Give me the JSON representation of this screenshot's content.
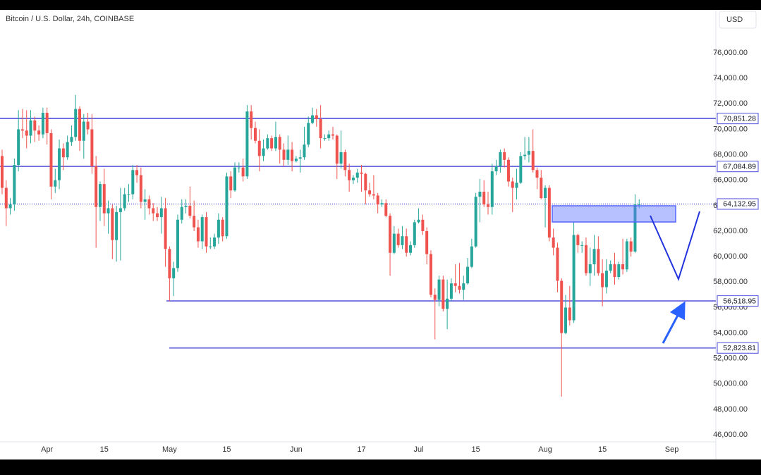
{
  "chart_data": {
    "type": "candlestick",
    "title": "Bitcoin / U.S. Dollar, 24h, COINBASE",
    "currency": "USD",
    "up_color": "#26a69a",
    "down_color": "#ef5350",
    "level_color": "#6a6ae0",
    "ylim": [
      45450,
      79380
    ],
    "yticks": [
      {
        "value": 46000,
        "label": "46,000.00"
      },
      {
        "value": 48000,
        "label": "48,000.00"
      },
      {
        "value": 50000,
        "label": "50,000.00"
      },
      {
        "value": 52000,
        "label": "52,000.00"
      },
      {
        "value": 54000,
        "label": "54,000.00"
      },
      {
        "value": 56000,
        "label": "56,000.00"
      },
      {
        "value": 58000,
        "label": "58,000.00"
      },
      {
        "value": 60000,
        "label": "60,000.00"
      },
      {
        "value": 62000,
        "label": "62,000.00"
      },
      {
        "value": 64000,
        "label": "64,000.00"
      },
      {
        "value": 66000,
        "label": "66,000.00"
      },
      {
        "value": 68000,
        "label": "68,000.00"
      },
      {
        "value": 70000,
        "label": "70,000.00"
      },
      {
        "value": 72000,
        "label": "72,000.00"
      },
      {
        "value": 74000,
        "label": "74,000.00"
      },
      {
        "value": 76000,
        "label": "76,000.00"
      }
    ],
    "levels": [
      {
        "value": 70851.28,
        "label": "70,851.28"
      },
      {
        "value": 67084.89,
        "label": "67,084.89"
      },
      {
        "value": 64132.95,
        "label": "64,132.95"
      },
      {
        "value": 56518.95,
        "label": "56,518.95"
      },
      {
        "value": 52823.81,
        "label": "52,823.81"
      }
    ],
    "categories": [
      null,
      null,
      null,
      null,
      null,
      null,
      null,
      null,
      null,
      null,
      null,
      "Apr",
      null,
      null,
      null,
      null,
      null,
      null,
      null,
      null,
      null,
      null,
      null,
      null,
      null,
      "15",
      null,
      null,
      null,
      null,
      null,
      null,
      null,
      null,
      null,
      null,
      null,
      null,
      null,
      null,
      null,
      "May",
      null,
      null,
      null,
      null,
      null,
      null,
      null,
      null,
      null,
      null,
      null,
      null,
      null,
      "15",
      null,
      null,
      null,
      null,
      null,
      null,
      null,
      null,
      null,
      null,
      null,
      null,
      null,
      null,
      null,
      null,
      "Jun",
      null,
      null,
      null,
      null,
      null,
      null,
      null,
      null,
      null,
      null,
      null,
      null,
      null,
      null,
      null,
      "17",
      null,
      null,
      null,
      null,
      null,
      null,
      null,
      null,
      null,
      null,
      null,
      null,
      null,
      "Jul",
      null,
      null,
      null,
      null,
      null,
      null,
      null,
      null,
      null,
      null,
      null,
      null,
      null,
      "15",
      null,
      null,
      null,
      null,
      null,
      null,
      null,
      null,
      null,
      null,
      null,
      null,
      null,
      null,
      null,
      null,
      "Aug",
      null,
      null,
      null,
      null,
      null,
      null,
      null,
      null,
      null,
      null,
      null,
      null,
      null,
      "15",
      null,
      null,
      null,
      null,
      null,
      null,
      null,
      null,
      null,
      null,
      null,
      null,
      null,
      null,
      null,
      null,
      "Sep"
    ],
    "open": [
      67900,
      65400,
      63800,
      64100,
      67200,
      70000,
      69900,
      69500,
      70700,
      69900,
      69600,
      71300,
      69700,
      65500,
      66000,
      68500,
      67800,
      69000,
      69400,
      71600,
      69100,
      70600,
      70000,
      67100,
      63900,
      65700,
      63400,
      63800,
      61300,
      63500,
      63800,
      64900,
      64900,
      66800,
      66400,
      64300,
      64500,
      63800,
      63400,
      63100,
      63800,
      60600,
      58300,
      59100,
      62900,
      63900,
      64000,
      63200,
      62300,
      61200,
      63100,
      60800,
      60800,
      61500,
      62900,
      61600,
      66300,
      65200,
      67000,
      67000,
      66300,
      71400,
      70100,
      69100,
      67900,
      68500,
      69300,
      68500,
      69400,
      68400,
      67600,
      68400,
      67500,
      67700,
      67800,
      68800,
      70500,
      71100,
      70800,
      69300,
      69300,
      69600,
      69500,
      67300,
      68200,
      66800,
      66000,
      66200,
      66600,
      66500,
      65200,
      64900,
      64800,
      64100,
      64200,
      63200,
      60300,
      61800,
      60900,
      61600,
      60300,
      60900,
      62700,
      62900,
      62000,
      60200,
      57000,
      56600,
      58200,
      55900,
      56700,
      57900,
      57700,
      57400,
      57900,
      59200,
      60800,
      64700,
      65100,
      64100,
      63900,
      66700,
      67100,
      68200,
      67600,
      65900,
      65400,
      65800,
      67900,
      68000,
      68300,
      66800,
      66200,
      64600,
      65400,
      61500,
      60700,
      58100,
      54000,
      56000,
      55000,
      61700,
      60900,
      60900,
      58700,
      59400,
      60600,
      58700,
      57600,
      58900,
      59400,
      58400,
      59400,
      59000,
      61200,
      60400,
      64100,
      null,
      null,
      null,
      null,
      null,
      null,
      null,
      null
    ],
    "high": [
      68400,
      66000,
      64600,
      67700,
      71500,
      71600,
      71500,
      71500,
      71000,
      70300,
      71700,
      71700,
      70000,
      66900,
      69200,
      68900,
      69500,
      70300,
      72700,
      71800,
      71200,
      71300,
      71200,
      67900,
      65900,
      66900,
      64400,
      64100,
      64000,
      65400,
      65400,
      65700,
      67200,
      67200,
      67000,
      65300,
      64800,
      64200,
      63900,
      64700,
      64600,
      60800,
      59600,
      63300,
      64500,
      64500,
      65500,
      64400,
      62900,
      63300,
      63500,
      61500,
      61800,
      63400,
      63100,
      66600,
      66700,
      67400,
      67400,
      67700,
      71900,
      71900,
      70600,
      70000,
      69200,
      69600,
      69500,
      70600,
      69600,
      68900,
      69500,
      69000,
      67900,
      68400,
      70200,
      71000,
      71700,
      71600,
      71900,
      69600,
      69900,
      70200,
      69600,
      69900,
      68400,
      67300,
      66400,
      66900,
      67200,
      66600,
      65800,
      66400,
      65000,
      64500,
      64500,
      63400,
      62400,
      62200,
      62400,
      62200,
      61200,
      62900,
      63800,
      63300,
      62300,
      60500,
      57500,
      58500,
      58500,
      58200,
      58300,
      59400,
      59500,
      58500,
      59900,
      61400,
      65000,
      66100,
      66000,
      65100,
      67300,
      67600,
      68400,
      68500,
      67800,
      66200,
      66900,
      68200,
      69400,
      69400,
      70000,
      67000,
      66800,
      65600,
      65600,
      62200,
      61100,
      58300,
      57000,
      57700,
      62700,
      61800,
      61200,
      61500,
      60700,
      61700,
      61600,
      59800,
      59800,
      59700,
      60300,
      59600,
      61400,
      61400,
      61500,
      64900,
      64500,
      null,
      null,
      null,
      null,
      null,
      null,
      null,
      null
    ],
    "low": [
      64900,
      62400,
      63300,
      63600,
      66700,
      69300,
      68500,
      68900,
      69000,
      69100,
      69300,
      68800,
      64500,
      65000,
      65300,
      66800,
      67600,
      68700,
      69100,
      68300,
      67700,
      69600,
      66500,
      60700,
      62800,
      62400,
      61800,
      59800,
      59600,
      59700,
      63600,
      64300,
      64500,
      65800,
      63800,
      62900,
      63300,
      62800,
      62800,
      61800,
      59200,
      56500,
      56900,
      58800,
      62600,
      63400,
      63000,
      62000,
      60700,
      60600,
      60300,
      60600,
      60600,
      61000,
      61200,
      61400,
      64600,
      65100,
      66600,
      65900,
      66100,
      69200,
      68900,
      66700,
      67500,
      68400,
      68300,
      68300,
      67300,
      67100,
      67200,
      66700,
      67400,
      66600,
      67600,
      68600,
      70400,
      70200,
      68500,
      69100,
      69100,
      69200,
      66100,
      66900,
      66300,
      65100,
      65700,
      65800,
      65100,
      64100,
      64700,
      64500,
      63400,
      63900,
      63100,
      58500,
      60200,
      60700,
      60600,
      60000,
      60100,
      60700,
      62600,
      61700,
      59400,
      56800,
      53500,
      56100,
      55700,
      54300,
      56500,
      57200,
      57100,
      56600,
      57800,
      59100,
      60700,
      62700,
      63900,
      63300,
      63300,
      66400,
      66600,
      67000,
      65500,
      63500,
      64500,
      65700,
      67600,
      67400,
      66600,
      65300,
      64500,
      62300,
      61200,
      60100,
      57200,
      49000,
      53900,
      54600,
      54800,
      60300,
      60300,
      58500,
      57700,
      58500,
      58500,
      56100,
      57100,
      58700,
      57800,
      58200,
      58600,
      58800,
      60000,
      60300,
      63800,
      null,
      null,
      null,
      null,
      null,
      null,
      null,
      null
    ],
    "close": [
      65400,
      63800,
      64100,
      67200,
      70000,
      69900,
      69500,
      70700,
      69900,
      69600,
      71300,
      69700,
      65500,
      66000,
      68500,
      67800,
      69000,
      69400,
      71600,
      69100,
      70600,
      70000,
      67100,
      63900,
      65700,
      63400,
      63800,
      61300,
      63500,
      63800,
      64900,
      64900,
      66800,
      66400,
      64300,
      64500,
      63800,
      63400,
      63100,
      63800,
      60600,
      58300,
      59100,
      62900,
      63900,
      64000,
      63200,
      62300,
      61200,
      63100,
      60800,
      60800,
      61500,
      62900,
      61600,
      66300,
      65200,
      67000,
      67000,
      66300,
      71400,
      70100,
      69100,
      67900,
      68500,
      69300,
      68500,
      69400,
      68400,
      67600,
      68400,
      67500,
      67700,
      67800,
      68800,
      70500,
      71100,
      70800,
      69300,
      69300,
      69600,
      69500,
      67300,
      68200,
      66800,
      66000,
      66200,
      66600,
      66500,
      65200,
      64900,
      64800,
      64100,
      64200,
      63200,
      60300,
      61800,
      60900,
      61600,
      60300,
      60900,
      62700,
      62900,
      62000,
      60200,
      57000,
      56600,
      58200,
      55900,
      56700,
      57900,
      57700,
      57400,
      57900,
      59200,
      60800,
      64700,
      65100,
      64100,
      63900,
      66700,
      67100,
      68200,
      67600,
      65900,
      65400,
      65800,
      67900,
      68000,
      68300,
      66800,
      66200,
      64600,
      65400,
      61500,
      60700,
      58100,
      54000,
      56000,
      55000,
      61700,
      60900,
      60900,
      58700,
      59400,
      60600,
      58700,
      57600,
      58900,
      59400,
      58400,
      59400,
      59000,
      61200,
      60400,
      64100,
      64100,
      null,
      null,
      null,
      null,
      null,
      null,
      null,
      null
    ]
  }
}
